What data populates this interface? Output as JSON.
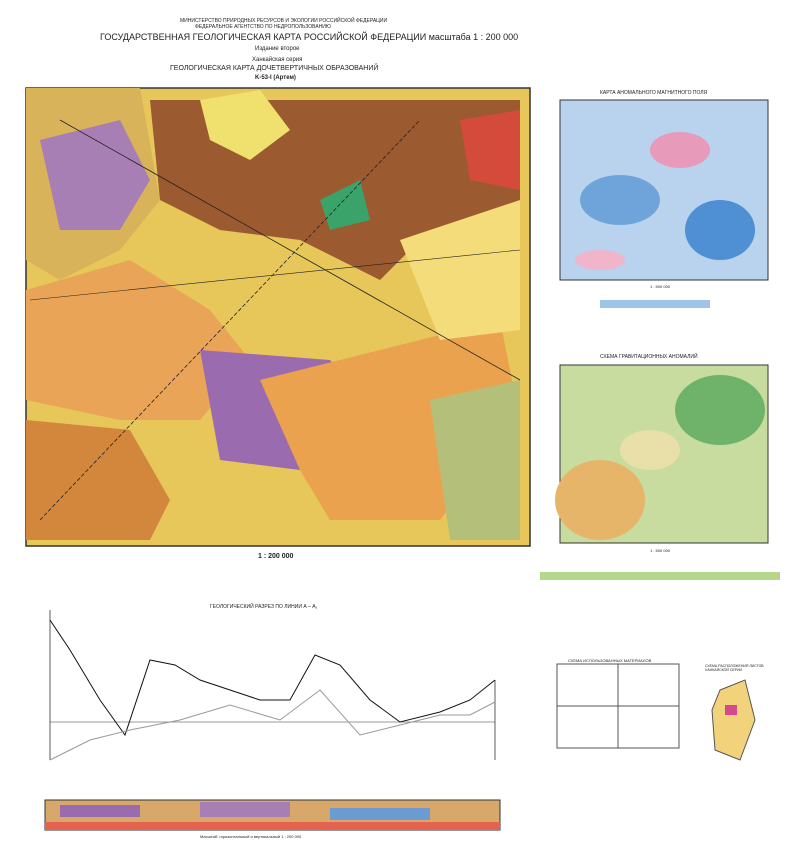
{
  "header": {
    "ministry": "МИНИСТЕРСТВО ПРИРОДНЫХ РЕСУРСОВ И ЭКОЛОГИИ РОССИЙСКОЙ ФЕДЕРАЦИИ",
    "agency": "ФЕДЕРАЛЬНОЕ АГЕНТСТВО ПО НЕДРОПОЛЬЗОВАНИЮ",
    "title": "ГОСУДАРСТВЕННАЯ ГЕОЛОГИЧЕСКАЯ КАРТА РОССИЙСКОЙ ФЕДЕРАЦИИ масштаба 1 : 200 000",
    "edition": "Издание второе",
    "series": "Ханкайская серия",
    "map_title": "ГЕОЛОГИЧЕСКАЯ КАРТА ДОЧЕТВЕРТИЧНЫХ ОБРАЗОВАНИЙ",
    "sheet": "K-53-I (Артем)"
  },
  "main_map": {
    "scale": "1 : 200 000"
  },
  "insets": {
    "magnetic_title": "КАРТА АНОМАЛЬНОГО МАГНИТНОГО ПОЛЯ",
    "magnetic_scale": "1 : 500 000",
    "gravity_title": "СХЕМА ГРАВИТАЦИОННЫХ АНОМАЛИЙ",
    "gravity_scale": "1 : 500 000"
  },
  "profile": {
    "title": "ГЕОЛОГИЧЕСКИЙ РАЗРЕЗ ПО ЛИНИИ А – А₁",
    "section_scale": "Масштаб: горизонтальный и вертикальный 1 : 200 000"
  },
  "schemes": {
    "materials_title": "СХЕМА ИСПОЛЬЗОВАННЫХ МАТЕРИАЛОВ",
    "location_title": "СХЕМА РАСПОЛОЖЕНИЯ ЛИСТОВ ХАНКАЙСКОЙ СЕРИИ"
  }
}
